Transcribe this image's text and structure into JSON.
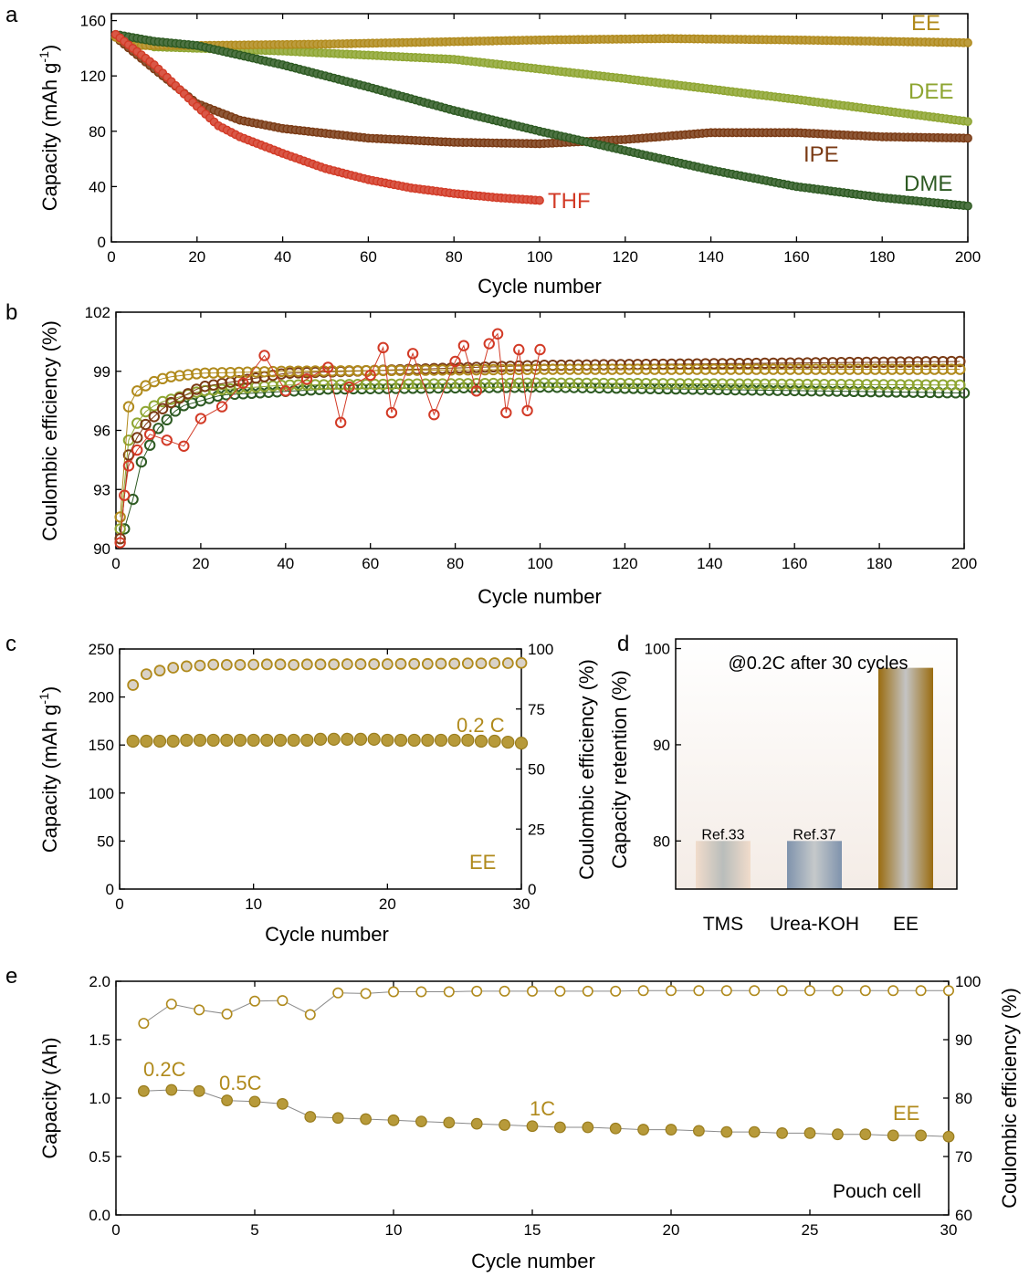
{
  "panel_labels": [
    "a",
    "b",
    "c",
    "d",
    "e"
  ],
  "colors": {
    "EE": "#b08a1c",
    "DEE": "#8ea531",
    "IPE": "#7a3a14",
    "DME": "#2d5a22",
    "THF": "#d23a26",
    "TMS": "#d8c8b8",
    "Urea-KOH": "#7f93ad"
  },
  "chart_data": [
    {
      "panel": "a",
      "type": "line",
      "xlabel": "Cycle number",
      "ylabel": "Capacity (mAh g-1)",
      "ylabel_main": "Capacity (mAh g",
      "ylabel_sup": "-1",
      "ylabel_end": ")",
      "xlim": [
        0,
        200
      ],
      "ylim": [
        0,
        165
      ],
      "xticks": [
        0,
        20,
        40,
        60,
        80,
        100,
        120,
        140,
        160,
        180,
        200
      ],
      "yticks": [
        0,
        40,
        80,
        120,
        160
      ],
      "series": [
        {
          "name": "EE",
          "color": "#b08a1c",
          "x": [
            1,
            5,
            20,
            50,
            100,
            130,
            160,
            200
          ],
          "y": [
            148,
            142,
            142,
            143,
            146,
            147,
            146,
            144
          ]
        },
        {
          "name": "DEE",
          "color": "#8ea531",
          "x": [
            1,
            10,
            40,
            80,
            120,
            160,
            200
          ],
          "y": [
            148,
            141,
            138,
            132,
            118,
            103,
            87
          ]
        },
        {
          "name": "IPE",
          "color": "#7a3a14",
          "x": [
            1,
            10,
            20,
            30,
            40,
            60,
            80,
            100,
            120,
            140,
            160,
            180,
            200
          ],
          "y": [
            148,
            125,
            100,
            88,
            82,
            75,
            72,
            71,
            74,
            79,
            79,
            76,
            75
          ]
        },
        {
          "name": "DME",
          "color": "#2d5a22",
          "x": [
            1,
            10,
            20,
            40,
            60,
            80,
            100,
            120,
            140,
            160,
            180,
            200
          ],
          "y": [
            150,
            145,
            142,
            128,
            112,
            95,
            80,
            66,
            52,
            40,
            32,
            26
          ]
        },
        {
          "name": "THF",
          "color": "#d23a26",
          "x": [
            1,
            5,
            10,
            15,
            20,
            25,
            30,
            40,
            50,
            60,
            70,
            80,
            90,
            100
          ],
          "y": [
            150,
            140,
            128,
            113,
            98,
            84,
            76,
            64,
            53,
            45,
            39,
            35,
            32,
            30
          ]
        }
      ],
      "annotations": [
        "EE",
        "DEE",
        "IPE",
        "DME",
        "THF"
      ]
    },
    {
      "panel": "b",
      "type": "scatter",
      "xlabel": "Cycle number",
      "ylabel": "Coulombic efficiency (%)",
      "xlim": [
        0,
        200
      ],
      "ylim": [
        90,
        102
      ],
      "xticks": [
        0,
        20,
        40,
        60,
        80,
        100,
        120,
        140,
        160,
        180,
        200
      ],
      "yticks": [
        90,
        93,
        96,
        99,
        102
      ],
      "series": [
        {
          "name": "EE",
          "color": "#b08a1c",
          "x": [
            1,
            2,
            3,
            5,
            8,
            12,
            20,
            40,
            100,
            200
          ],
          "y": [
            91.6,
            96.5,
            97.2,
            98.0,
            98.4,
            98.7,
            98.9,
            99.0,
            99.1,
            99.1
          ]
        },
        {
          "name": "DEE",
          "color": "#8ea531",
          "x": [
            1,
            3,
            6,
            10,
            20,
            40,
            100,
            200
          ],
          "y": [
            91.0,
            95.5,
            96.8,
            97.4,
            98.0,
            98.3,
            98.4,
            98.3
          ]
        },
        {
          "name": "IPE",
          "color": "#7a3a14",
          "x": [
            1,
            2,
            4,
            7,
            12,
            20,
            40,
            100,
            200
          ],
          "y": [
            90.5,
            94.2,
            95.3,
            96.3,
            97.3,
            98.2,
            98.9,
            99.3,
            99.5
          ]
        },
        {
          "name": "DME",
          "color": "#2d5a22",
          "x": [
            2,
            4,
            6,
            10,
            15,
            25,
            50,
            100,
            200
          ],
          "y": [
            91.0,
            92.5,
            94.4,
            96.1,
            97.2,
            97.8,
            98.1,
            98.2,
            97.9
          ]
        },
        {
          "name": "THF",
          "color": "#d23a26",
          "x": [
            1,
            2,
            3,
            5,
            8,
            12,
            16,
            20,
            25,
            30,
            35,
            40,
            45,
            50,
            53,
            55,
            60,
            63,
            65,
            70,
            75,
            80,
            82,
            85,
            88,
            90,
            92,
            95,
            97,
            100
          ],
          "y": [
            90.3,
            92.7,
            94.2,
            95.0,
            95.8,
            95.5,
            95.2,
            96.6,
            97.2,
            98.4,
            99.8,
            98.0,
            98.6,
            99.2,
            96.4,
            98.2,
            98.8,
            100.2,
            96.9,
            99.9,
            96.8,
            99.5,
            100.3,
            98.0,
            100.4,
            100.9,
            96.9,
            100.1,
            97.0,
            100.1
          ]
        }
      ]
    },
    {
      "panel": "c",
      "type": "scatter",
      "xlabel": "Cycle number",
      "ylabel_left": "Capacity (mAh g-1)",
      "ylabel_left_main": "Capacity (mAh g",
      "ylabel_left_sup": "-1",
      "ylabel_left_end": ")",
      "ylabel_right": "Coulombic efficiency (%)",
      "xlim": [
        0,
        30
      ],
      "ylim_left": [
        0,
        250
      ],
      "ylim_right": [
        0,
        100
      ],
      "xticks": [
        0,
        10,
        20,
        30
      ],
      "yticks_left": [
        0,
        50,
        100,
        150,
        200,
        250
      ],
      "yticks_right": [
        0,
        25,
        50,
        75,
        100
      ],
      "capacity": {
        "x": [
          1,
          2,
          3,
          4,
          5,
          6,
          7,
          8,
          9,
          10,
          11,
          12,
          13,
          14,
          15,
          16,
          17,
          18,
          19,
          20,
          21,
          22,
          23,
          24,
          25,
          26,
          27,
          28,
          29,
          30
        ],
        "y": [
          154,
          154,
          154,
          154,
          155,
          155,
          155,
          155,
          155,
          155,
          155,
          155,
          155,
          155,
          156,
          156,
          156,
          156,
          156,
          155,
          155,
          155,
          155,
          155,
          155,
          155,
          154,
          154,
          153,
          152
        ]
      },
      "efficiency": {
        "x": [
          1,
          2,
          3,
          4,
          5,
          6,
          7,
          8,
          9,
          10,
          11,
          12,
          13,
          14,
          15,
          16,
          17,
          18,
          19,
          20,
          21,
          22,
          23,
          24,
          25,
          26,
          27,
          28,
          29,
          30
        ],
        "y": [
          85.0,
          89.5,
          91.0,
          92.2,
          92.8,
          93.1,
          93.5,
          93.4,
          93.4,
          93.5,
          93.6,
          93.6,
          93.4,
          93.6,
          93.6,
          93.6,
          93.7,
          93.7,
          93.7,
          93.7,
          93.8,
          93.8,
          93.8,
          93.9,
          93.9,
          94.0,
          94.0,
          94.1,
          94.1,
          94.2
        ]
      },
      "annotations": [
        "0.2 C",
        "EE"
      ]
    },
    {
      "panel": "d",
      "type": "bar",
      "title": "@0.2C after 30 cycles",
      "ylabel": "Capacity retention (%)",
      "categories": [
        "TMS",
        "Urea-KOH",
        "EE"
      ],
      "values": [
        80,
        80,
        98
      ],
      "bar_labels": [
        "Ref.33",
        "Ref.37",
        ""
      ],
      "ylim": [
        75,
        101
      ],
      "yticks": [
        80,
        90,
        100
      ]
    },
    {
      "panel": "e",
      "type": "scatter",
      "xlabel": "Cycle number",
      "ylabel_left": "Capacity (Ah)",
      "ylabel_right": "Coulombic efficiency (%)",
      "xlim": [
        0,
        30
      ],
      "ylim_left": [
        0,
        2.0
      ],
      "ylim_right": [
        60,
        100
      ],
      "xticks": [
        0,
        5,
        10,
        15,
        20,
        25,
        30
      ],
      "yticks_left": [
        "0.0",
        "0.5",
        "1.0",
        "1.5",
        "2.0"
      ],
      "yticks_right": [
        60,
        70,
        80,
        90,
        100
      ],
      "capacity": {
        "x": [
          1,
          2,
          3,
          4,
          5,
          6,
          7,
          8,
          9,
          10,
          11,
          12,
          13,
          14,
          15,
          16,
          17,
          18,
          19,
          20,
          21,
          22,
          23,
          24,
          25,
          26,
          27,
          28,
          29,
          30
        ],
        "y": [
          1.06,
          1.07,
          1.06,
          0.98,
          0.97,
          0.95,
          0.84,
          0.83,
          0.82,
          0.81,
          0.8,
          0.79,
          0.78,
          0.77,
          0.76,
          0.75,
          0.75,
          0.74,
          0.73,
          0.73,
          0.72,
          0.71,
          0.71,
          0.7,
          0.7,
          0.69,
          0.69,
          0.68,
          0.68,
          0.67
        ]
      },
      "efficiency": {
        "x": [
          1,
          2,
          3,
          4,
          5,
          6,
          7,
          8,
          9,
          10,
          11,
          12,
          13,
          14,
          15,
          16,
          17,
          18,
          19,
          20,
          21,
          22,
          23,
          24,
          25,
          26,
          27,
          28,
          29,
          30
        ],
        "y": [
          92.8,
          96.1,
          95.1,
          94.4,
          96.6,
          96.7,
          94.3,
          98.0,
          97.9,
          98.2,
          98.2,
          98.2,
          98.3,
          98.3,
          98.3,
          98.3,
          98.3,
          98.3,
          98.4,
          98.4,
          98.4,
          98.4,
          98.4,
          98.4,
          98.4,
          98.4,
          98.4,
          98.4,
          98.4,
          98.4
        ]
      },
      "annotations": [
        "0.2C",
        "0.5C",
        "1C",
        "EE",
        "Pouch cell"
      ]
    }
  ]
}
